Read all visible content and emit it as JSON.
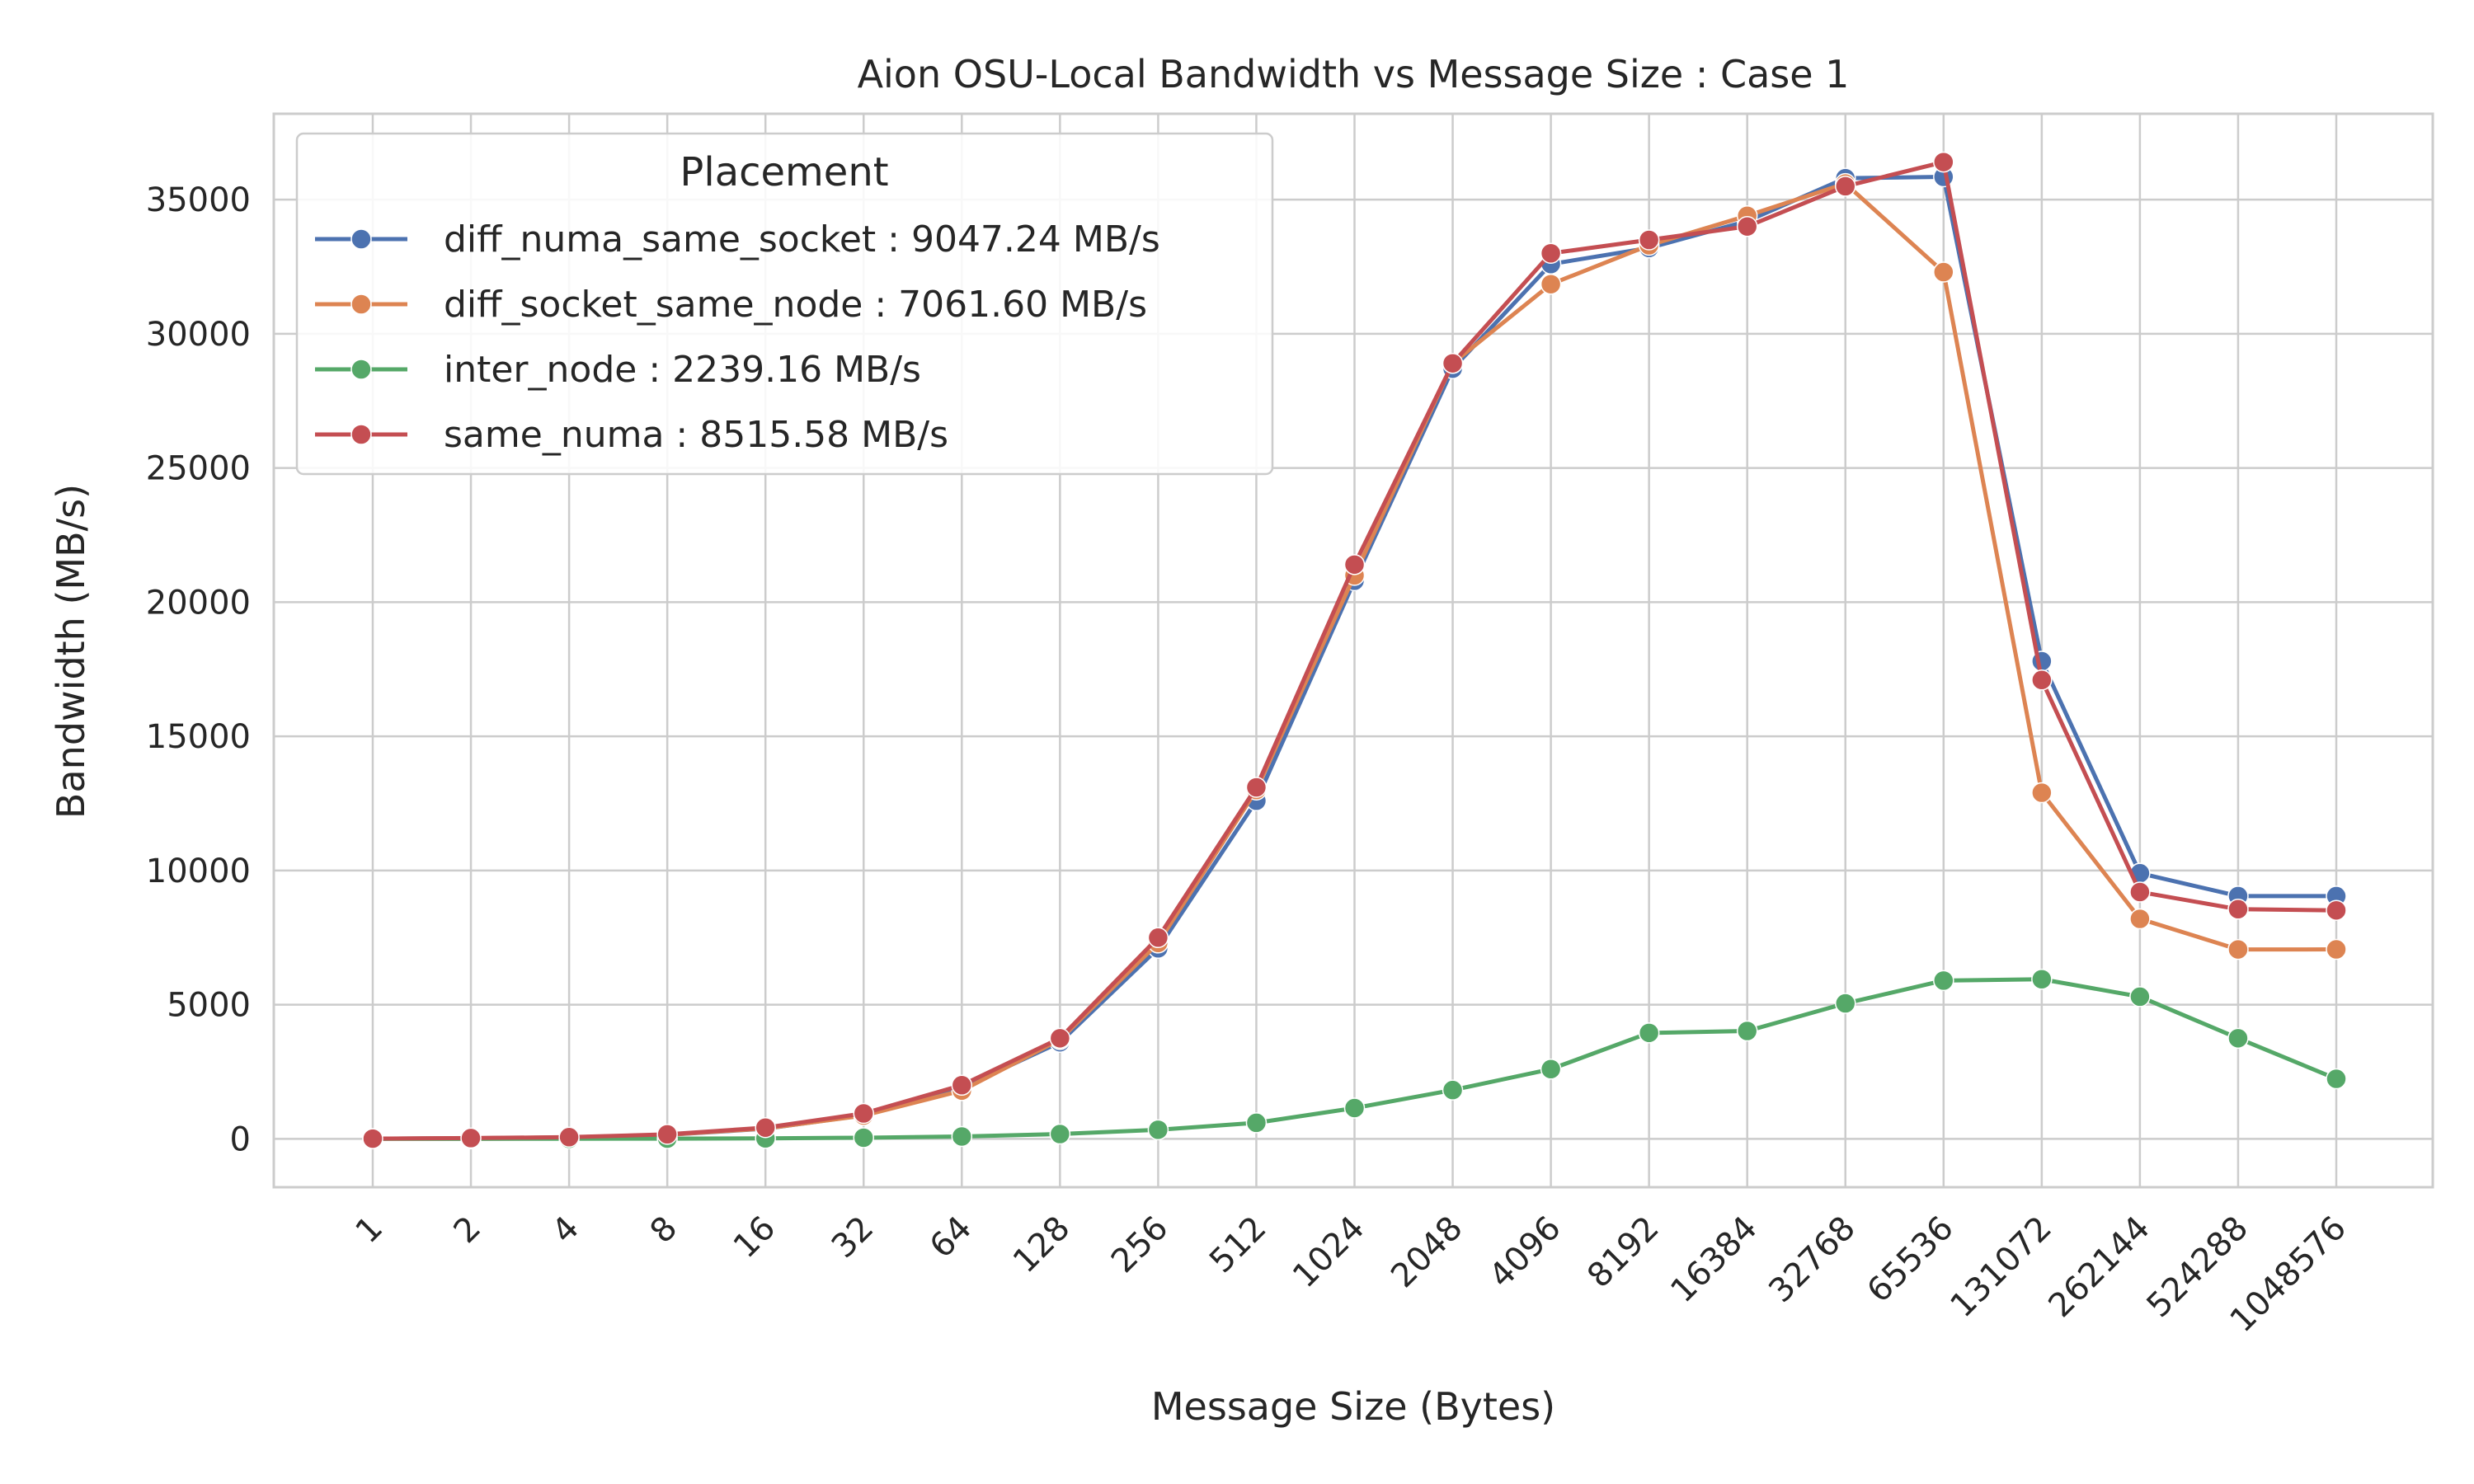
{
  "chart_data": {
    "type": "line",
    "title": "Aion OSU-Local Bandwidth vs Message Size : Case 1",
    "xlabel": "Message Size (Bytes)",
    "ylabel": "Bandwidth (MB/s)",
    "x_scale": "log2",
    "categories": [
      "1",
      "2",
      "4",
      "8",
      "16",
      "32",
      "64",
      "128",
      "256",
      "512",
      "1024",
      "2048",
      "4096",
      "8192",
      "16384",
      "32768",
      "65536",
      "131072",
      "262144",
      "524288",
      "1048576"
    ],
    "ylim": [
      -1800,
      38200
    ],
    "yticks": [
      0,
      5000,
      10000,
      15000,
      20000,
      25000,
      30000,
      35000
    ],
    "ytick_labels": [
      "0",
      "5000",
      "10000",
      "15000",
      "20000",
      "25000",
      "30000",
      "35000"
    ],
    "grid": true,
    "legend": {
      "title": "Placement",
      "location": "top-left"
    },
    "series": [
      {
        "name": "diff_numa_same_socket : 9047.24 MB/s",
        "color": "#4C72B0",
        "values": [
          8,
          24,
          56,
          150,
          380,
          880,
          1900,
          3600,
          7100,
          12600,
          20800,
          28700,
          32600,
          33200,
          34200,
          35800,
          35850,
          17800,
          9900,
          9050,
          9047
        ]
      },
      {
        "name": "diff_socket_same_node : 7061.60 MB/s",
        "color": "#DD8452",
        "values": [
          8,
          25,
          58,
          155,
          390,
          870,
          1800,
          3700,
          7300,
          13000,
          21000,
          28900,
          31850,
          33300,
          34400,
          35600,
          32300,
          12900,
          8200,
          7060,
          7062
        ]
      },
      {
        "name": "inter_node : 2239.16 MB/s",
        "color": "#55A868",
        "values": [
          1,
          2,
          5,
          10,
          20,
          45,
          90,
          180,
          340,
          600,
          1150,
          1820,
          2600,
          3950,
          4020,
          5050,
          5900,
          5950,
          5300,
          3750,
          2239
        ]
      },
      {
        "name": "same_numa : 8515.58 MB/s",
        "color": "#C44E52",
        "values": [
          10,
          30,
          65,
          170,
          420,
          950,
          2000,
          3750,
          7500,
          13100,
          21400,
          28900,
          33000,
          33500,
          34000,
          35500,
          36400,
          17100,
          9200,
          8560,
          8516
        ]
      }
    ]
  }
}
